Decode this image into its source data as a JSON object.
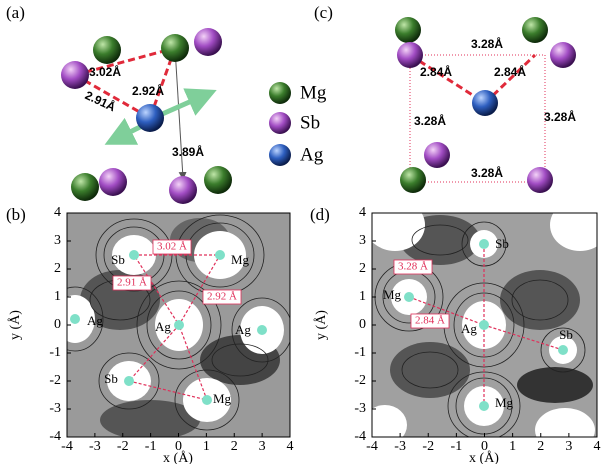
{
  "panel_a": {
    "label": "(a)",
    "distances": [
      "3.02Å",
      "2.91Å",
      "2.92Å",
      "3.89Å"
    ]
  },
  "legend": {
    "items": [
      "Mg",
      "Sb",
      "Ag"
    ]
  },
  "panel_c": {
    "label": "(c)",
    "distances": [
      "3.28Å",
      "2.84Å",
      "2.84Å",
      "3.28Å",
      "3.28Å",
      "3.28Å"
    ]
  },
  "panel_b": {
    "label": "(b)",
    "x_label": "x (Å)",
    "y_label": "y (Å)",
    "xticks": [
      -4,
      -3,
      -2,
      -1,
      0,
      1,
      2,
      3,
      4
    ],
    "yticks": [
      -4,
      -3,
      -2,
      -1,
      0,
      1,
      2,
      3,
      4
    ],
    "atoms": [
      "Sb",
      "Mg",
      "Ag",
      "Ag",
      "Ag",
      "Sb",
      "Mg"
    ],
    "distances": [
      "3.02 Å",
      "2.91 Å",
      "2.92 Å"
    ]
  },
  "panel_d": {
    "label": "(d)",
    "x_label": "x (Å)",
    "y_label": "y (Å)",
    "xticks": [
      -4,
      -3,
      -2,
      -1,
      0,
      1,
      2,
      3,
      4
    ],
    "yticks": [
      -4,
      -3,
      -2,
      -1,
      0,
      1,
      2,
      3,
      4
    ],
    "atoms": [
      "Sb",
      "Mg",
      "Ag",
      "Sb",
      "Mg"
    ],
    "distances": [
      "3.28 Å",
      "2.84 Å"
    ]
  }
}
